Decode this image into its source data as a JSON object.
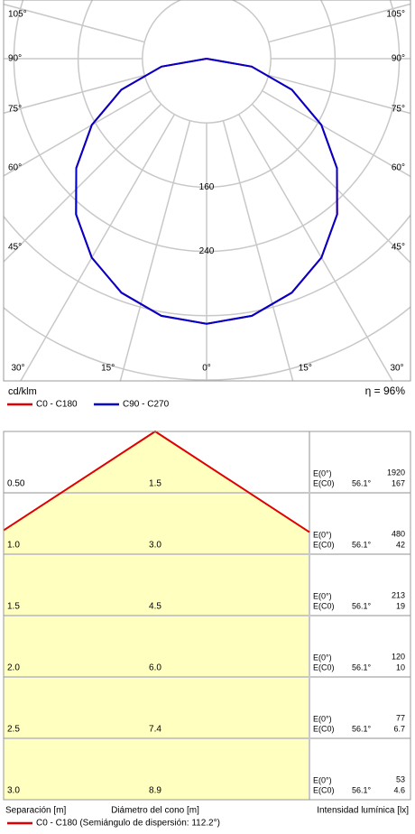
{
  "chart_data": {
    "type": "polar",
    "angles": [
      -90,
      -80,
      -70,
      -60,
      -50,
      -40,
      -30,
      -20,
      -10,
      0,
      10,
      20,
      30,
      40,
      50,
      60,
      70,
      80,
      90
    ],
    "series": [
      {
        "name": "C0 - C180",
        "color": "#e00000",
        "values": [
          0,
          57,
          113,
          165,
          212,
          253,
          286,
          310,
          325,
          330,
          325,
          310,
          286,
          253,
          212,
          165,
          113,
          57,
          0
        ]
      },
      {
        "name": "C90 - C270",
        "color": "#0000cc",
        "values": [
          0,
          57,
          113,
          165,
          212,
          253,
          286,
          310,
          325,
          330,
          325,
          310,
          286,
          253,
          212,
          165,
          113,
          57,
          0
        ]
      }
    ],
    "rgrid": [
      80,
      160,
      240,
      320,
      400,
      480
    ],
    "rticks": [
      160,
      240
    ],
    "angle_ticks": [
      {
        "value": -105,
        "label": "105°"
      },
      {
        "value": -90,
        "label": "90°"
      },
      {
        "value": -75,
        "label": "75°"
      },
      {
        "value": -60,
        "label": "60°"
      },
      {
        "value": -45,
        "label": "45°"
      },
      {
        "value": -30,
        "label": "30°"
      },
      {
        "value": -15,
        "label": "15°"
      },
      {
        "value": 0,
        "label": "0°"
      },
      {
        "value": 15,
        "label": "15°"
      },
      {
        "value": 30,
        "label": "30°"
      },
      {
        "value": 45,
        "label": "45°"
      },
      {
        "value": 60,
        "label": "60°"
      },
      {
        "value": 75,
        "label": "75°"
      },
      {
        "value": 90,
        "label": "90°"
      },
      {
        "value": 105,
        "label": "105°"
      }
    ],
    "unit_label": "cd/klm",
    "efficiency": "η = 96%"
  },
  "cone_table": {
    "rows": [
      {
        "separation": "0.50",
        "diameter": "1.5",
        "e0": "1920",
        "ec0": "167"
      },
      {
        "separation": "1.0",
        "diameter": "3.0",
        "e0": "480",
        "ec0": "42"
      },
      {
        "separation": "1.5",
        "diameter": "4.5",
        "e0": "213",
        "ec0": "19"
      },
      {
        "separation": "2.0",
        "diameter": "6.0",
        "e0": "120",
        "ec0": "10"
      },
      {
        "separation": "2.5",
        "diameter": "7.4",
        "e0": "77",
        "ec0": "6.7"
      },
      {
        "separation": "3.0",
        "diameter": "8.9",
        "e0": "53",
        "ec0": "4.6"
      }
    ],
    "e0_label": "E(0°)",
    "ec0_label": "E(C0)",
    "half_angle": "56.1°",
    "separation_label": "Separación [m]",
    "diameter_label": "Diámetro del cono [m]",
    "intensity_label": "Intensidad lumínica [lx]",
    "legend": "C0 - C180 (Semiángulo de dispersión: 112.2°)",
    "legend_color": "#e00000",
    "fill_color": "#ffffc0"
  }
}
